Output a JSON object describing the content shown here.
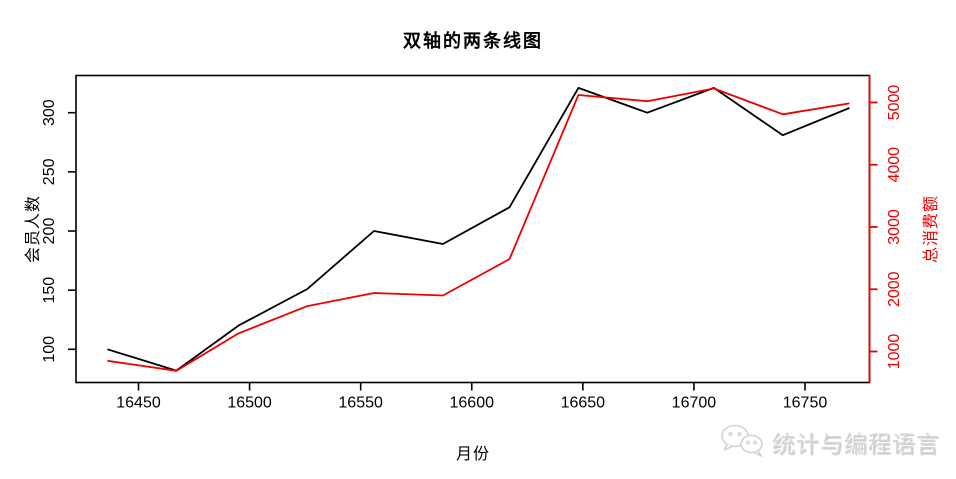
{
  "chart_data": {
    "type": "line",
    "title": "双轴的两条线图",
    "xlabel": "月份",
    "grid": false,
    "legend": "none",
    "x": [
      16436,
      16467,
      16495,
      16526,
      16556,
      16587,
      16617,
      16648,
      16679,
      16709,
      16740,
      16770
    ],
    "x_ticks": [
      16450,
      16500,
      16550,
      16600,
      16650,
      16700,
      16750
    ],
    "x_range": [
      16422,
      16784
    ],
    "left_axis": {
      "label": "会员人数",
      "ticks": [
        100,
        150,
        200,
        250,
        300
      ],
      "color": "#000000"
    },
    "right_axis": {
      "label": "总消费额",
      "ticks": [
        1000,
        2000,
        3000,
        4000,
        5000
      ],
      "color": "#ee0000"
    },
    "series": [
      {
        "name": "会员人数",
        "axis": "left",
        "color": "#000000",
        "values": [
          100,
          82,
          120,
          151,
          200,
          189,
          220,
          321,
          300,
          321,
          281,
          304
        ]
      },
      {
        "name": "总消费额",
        "axis": "right",
        "color": "#ee0000",
        "values": [
          850,
          690,
          1290,
          1730,
          1940,
          1900,
          2485,
          5120,
          5020,
          5225,
          4810,
          4985
        ]
      }
    ]
  },
  "watermark": {
    "text": "统计与编程语言",
    "icon": "wechat-icon"
  }
}
